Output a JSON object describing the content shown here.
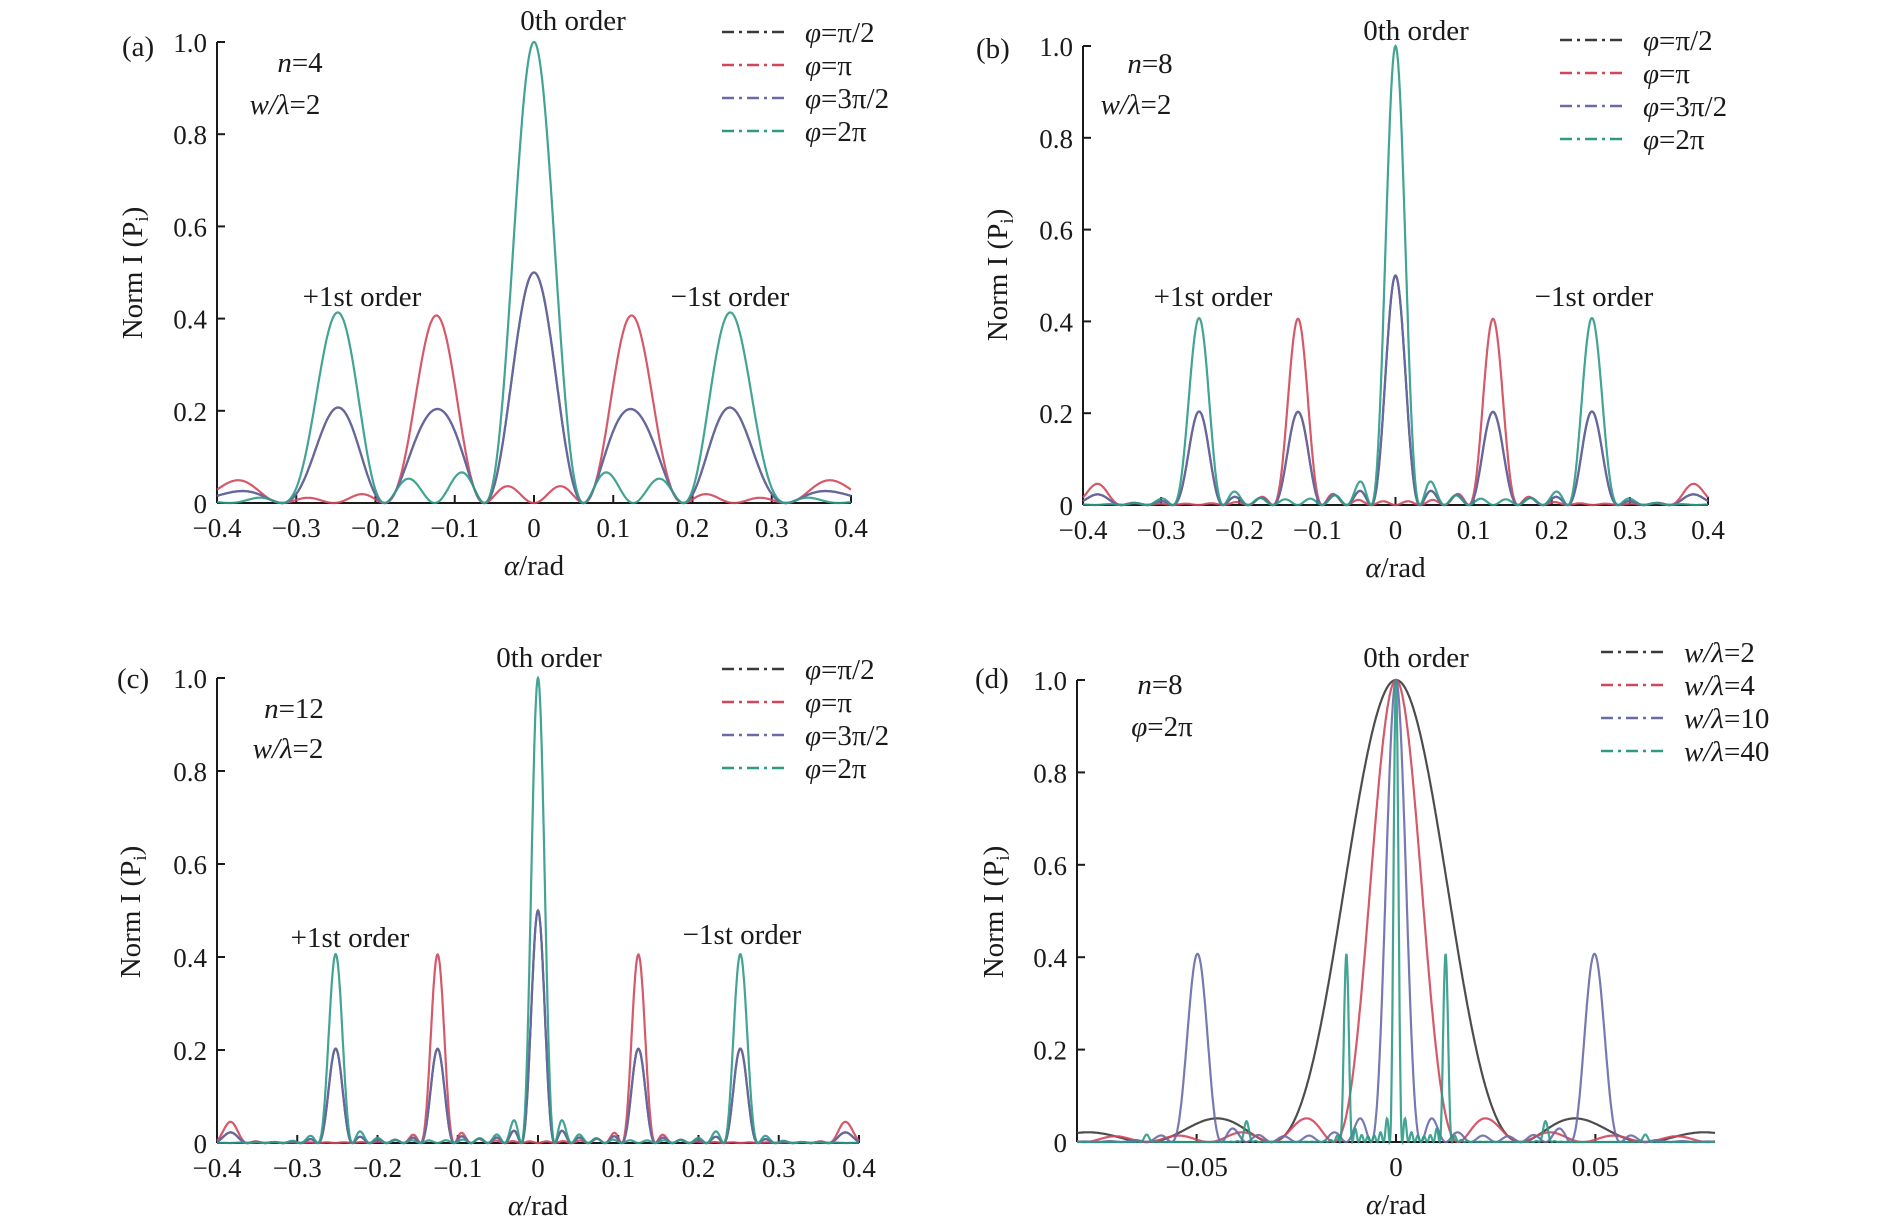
{
  "chart_data": [
    {
      "type": "line",
      "panel": "(a)",
      "xlabel": "α/rad",
      "ylabel": "Norm I (Pi)",
      "xlim": [
        -0.4,
        0.4
      ],
      "ylim": [
        0,
        1.0
      ],
      "xticks": [
        "−0.4",
        "−0.3",
        "−0.2",
        "−0.1",
        "0",
        "0.1",
        "0.2",
        "0.3",
        "0.4"
      ],
      "yticks": [
        "0",
        "0.2",
        "0.4",
        "0.6",
        "0.8",
        "1.0"
      ],
      "params": [
        "n=4",
        "w/λ=2"
      ],
      "n": 4,
      "width_ratio": 2,
      "annotations": [
        "0th order",
        "+1st order",
        "−1st order"
      ],
      "legend_position": "top-right",
      "series": [
        {
          "name": "φ=π/2",
          "color": "#3a3a3a",
          "phase": 1.5708
        },
        {
          "name": "φ=π",
          "color": "#d0475a",
          "phase": 3.1416
        },
        {
          "name": "φ=3π/2",
          "color": "#6a6aa8",
          "phase": 4.7124
        },
        {
          "name": "φ=2π",
          "color": "#2e9a86",
          "phase": 6.2832
        }
      ],
      "peaks": {
        "zero_order": [
          0.5,
          0.0,
          0.5,
          1.0
        ],
        "first_order": [
          0.2,
          0.4,
          0.2,
          0.0
        ]
      }
    },
    {
      "type": "line",
      "panel": "(b)",
      "xlabel": "α/rad",
      "ylabel": "Norm I (Pi)",
      "xlim": [
        -0.4,
        0.4
      ],
      "ylim": [
        0,
        1.0
      ],
      "xticks": [
        "−0.4",
        "−0.3",
        "−0.2",
        "−0.1",
        "0",
        "0.1",
        "0.2",
        "0.3",
        "0.4"
      ],
      "yticks": [
        "0",
        "0.2",
        "0.4",
        "0.6",
        "0.8",
        "1.0"
      ],
      "params": [
        "n=8",
        "w/λ=2"
      ],
      "n": 8,
      "width_ratio": 2,
      "annotations": [
        "0th order",
        "+1st order",
        "−1st order"
      ],
      "legend_position": "top-right",
      "series": [
        {
          "name": "φ=π/2",
          "color": "#3a3a3a",
          "phase": 1.5708
        },
        {
          "name": "φ=π",
          "color": "#d0475a",
          "phase": 3.1416
        },
        {
          "name": "φ=3π/2",
          "color": "#6a6aa8",
          "phase": 4.7124
        },
        {
          "name": "φ=2π",
          "color": "#2e9a86",
          "phase": 6.2832
        }
      ],
      "peaks": {
        "zero_order": [
          0.5,
          0.0,
          0.5,
          1.0
        ],
        "first_order": [
          0.2,
          0.4,
          0.2,
          0.0
        ]
      }
    },
    {
      "type": "line",
      "panel": "(c)",
      "xlabel": "α/rad",
      "ylabel": "Norm I (Pi)",
      "xlim": [
        -0.4,
        0.4
      ],
      "ylim": [
        0,
        1.0
      ],
      "xticks": [
        "−0.4",
        "−0.3",
        "−0.2",
        "−0.1",
        "0",
        "0.1",
        "0.2",
        "0.3",
        "0.4"
      ],
      "yticks": [
        "0",
        "0.2",
        "0.4",
        "0.6",
        "0.8",
        "1.0"
      ],
      "params": [
        "n=12",
        "w/λ=2"
      ],
      "n": 12,
      "width_ratio": 2,
      "annotations": [
        "0th order",
        "+1st order",
        "−1st order"
      ],
      "legend_position": "top-right",
      "series": [
        {
          "name": "φ=π/2",
          "color": "#3a3a3a",
          "phase": 1.5708
        },
        {
          "name": "φ=π",
          "color": "#d0475a",
          "phase": 3.1416
        },
        {
          "name": "φ=3π/2",
          "color": "#6a6aa8",
          "phase": 4.7124
        },
        {
          "name": "φ=2π",
          "color": "#2e9a86",
          "phase": 6.2832
        }
      ],
      "peaks": {
        "zero_order": [
          0.5,
          0.0,
          0.5,
          1.0
        ],
        "first_order": [
          0.2,
          0.4,
          0.2,
          0.0
        ]
      }
    },
    {
      "type": "line",
      "panel": "(d)",
      "xlabel": "α/rad",
      "ylabel": "Norm I (Pi)",
      "xlim": [
        -0.08,
        0.08
      ],
      "ylim": [
        0,
        1.0
      ],
      "xticks": [
        "−0.05",
        "0",
        "0.05"
      ],
      "xtick_values": [
        -0.05,
        0,
        0.05
      ],
      "yticks": [
        "0",
        "0.2",
        "0.4",
        "0.6",
        "0.8",
        "1.0"
      ],
      "params": [
        "n=8",
        "φ=2π"
      ],
      "n": 8,
      "annotations": [
        "0th order"
      ],
      "legend_position": "top-right",
      "series": [
        {
          "name": "w/λ=2",
          "color": "#3a3a3a",
          "width_ratio": 2
        },
        {
          "name": "w/λ=4",
          "color": "#d0475a",
          "width_ratio": 4
        },
        {
          "name": "w/λ=10",
          "color": "#6a6aa8",
          "width_ratio": 10
        },
        {
          "name": "w/λ=40",
          "color": "#2e9a86",
          "width_ratio": 40
        }
      ],
      "peaks": {
        "zero_order": [
          1.0,
          1.0,
          1.0,
          1.0
        ]
      }
    }
  ]
}
